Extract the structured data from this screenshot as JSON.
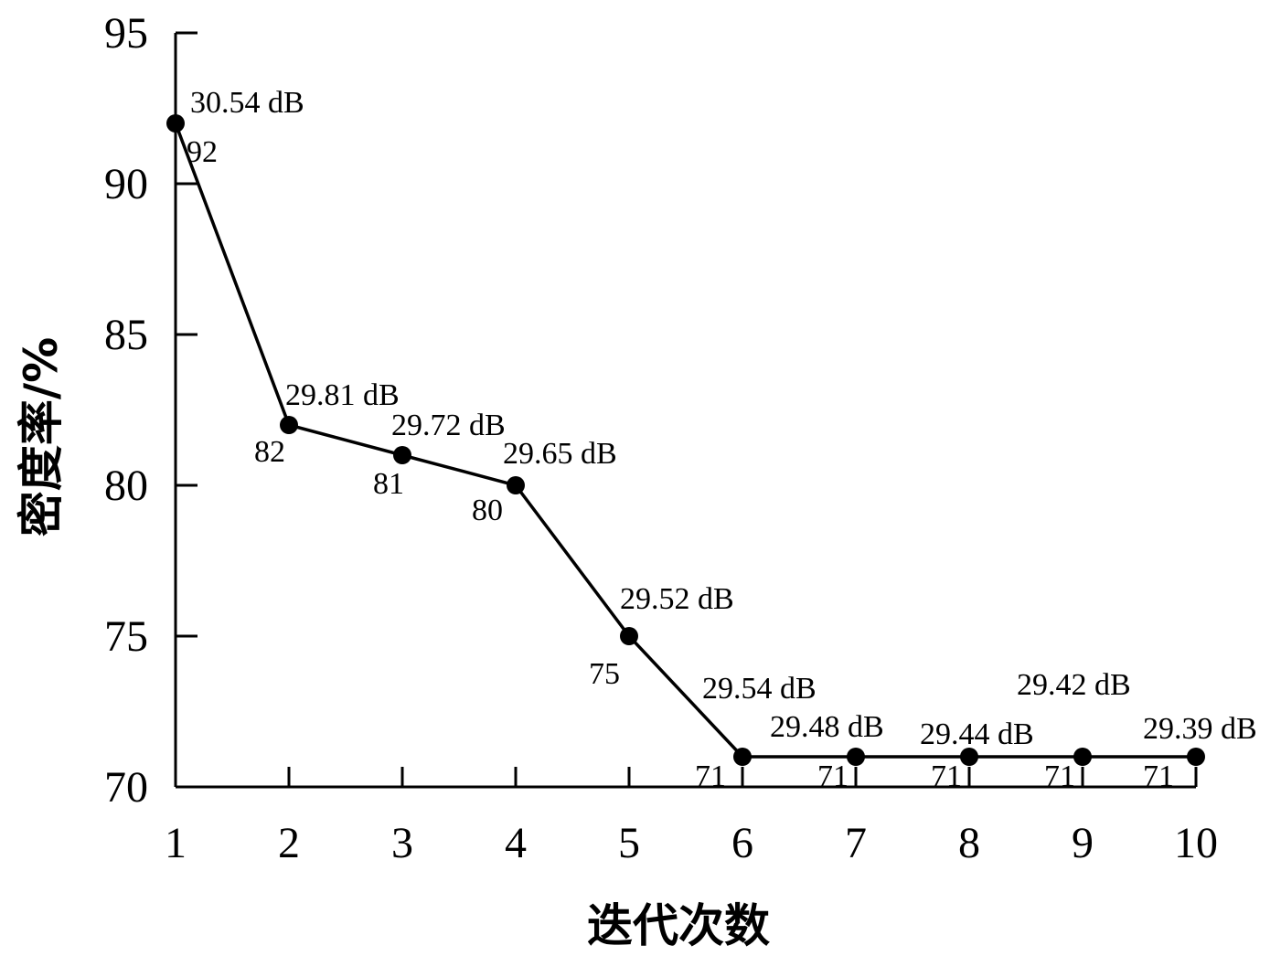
{
  "chart_data": {
    "type": "line",
    "title": "",
    "xlabel": "迭代次数",
    "ylabel": "密度率/%",
    "xlim": [
      1,
      10
    ],
    "ylim": [
      70,
      95
    ],
    "x_ticks": [
      "1",
      "2",
      "3",
      "4",
      "5",
      "6",
      "7",
      "8",
      "9",
      "10"
    ],
    "y_ticks": [
      "70",
      "75",
      "80",
      "85",
      "90",
      "95"
    ],
    "grid": false,
    "legend": "none",
    "series": [
      {
        "x": [
          1,
          2,
          3,
          4,
          5,
          6,
          7,
          8,
          9,
          10
        ],
        "values": [
          92,
          82,
          81,
          80,
          75,
          71,
          71,
          71,
          71,
          71
        ],
        "value_labels": [
          "92",
          "82",
          "81",
          "80",
          "75",
          "71",
          "71",
          "71",
          "71",
          "71"
        ],
        "db_labels": [
          "30.54 dB",
          "29.81 dB",
          "29.72 dB",
          "29.65 dB",
          "29.52 dB",
          "29.54 dB",
          "29.48 dB",
          "29.44 dB",
          "29.42 dB",
          "29.39 dB"
        ]
      }
    ],
    "colors": {
      "line": "#000000",
      "marker": "#000000"
    }
  }
}
